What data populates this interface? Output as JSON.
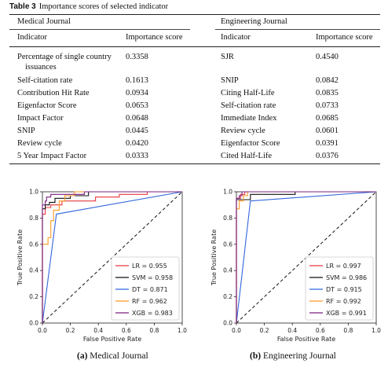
{
  "table": {
    "label": "Table 3",
    "caption": "Importance scores of selected indicator",
    "medical": {
      "journal": "Medical Journal",
      "col_indicator": "Indicator",
      "col_score": "Importance score",
      "rows": [
        {
          "indicator": "Percentage of single country",
          "indicator2": "issuances",
          "score": "0.3358"
        },
        {
          "indicator": "Self-citation rate",
          "score": "0.1613"
        },
        {
          "indicator": "Contribution Hit Rate",
          "score": "0.0934"
        },
        {
          "indicator": "Eigenfactor Score",
          "score": "0.0653"
        },
        {
          "indicator": "Impact Factor",
          "score": "0.0648"
        },
        {
          "indicator": "SNIP",
          "score": "0.0445"
        },
        {
          "indicator": "Review cycle",
          "score": "0.0420"
        },
        {
          "indicator": "5 Year Impact Factor",
          "score": "0.0333"
        }
      ]
    },
    "engineering": {
      "journal": "Engineering Journal",
      "col_indicator": "Indicator",
      "col_score": "Importance score",
      "rows": [
        {
          "indicator": "SJR",
          "score": "0.4540"
        },
        {
          "indicator": "SNIP",
          "score": "0.0842"
        },
        {
          "indicator": "Citing Half-Life",
          "score": "0.0835"
        },
        {
          "indicator": "Self-citation rate",
          "score": "0.0733"
        },
        {
          "indicator": "Immediate Index",
          "score": "0.0685"
        },
        {
          "indicator": "Review cycle",
          "score": "0.0601"
        },
        {
          "indicator": "Eigenfactor Score",
          "score": "0.0391"
        },
        {
          "indicator": "Cited Half-Life",
          "score": "0.0376"
        }
      ]
    }
  },
  "chart_data": [
    {
      "type": "line",
      "subtitle_tag": "(a)",
      "subtitle": "Medical Journal",
      "xlabel": "False Positive Rate",
      "ylabel": "True Positive Rate",
      "xlim": [
        0,
        1
      ],
      "ylim": [
        0,
        1
      ],
      "ticks": [
        "0.0",
        "0.2",
        "0.4",
        "0.6",
        "0.8",
        "1.0"
      ],
      "legend_position": "lower-right",
      "diagonal": true,
      "series": [
        {
          "name": "LR = 0.955",
          "color": "#e8383d",
          "points": [
            [
              0,
              0
            ],
            [
              0,
              0.83
            ],
            [
              0.02,
              0.83
            ],
            [
              0.02,
              0.88
            ],
            [
              0.06,
              0.88
            ],
            [
              0.06,
              0.9
            ],
            [
              0.14,
              0.9
            ],
            [
              0.14,
              0.93
            ],
            [
              0.38,
              0.93
            ],
            [
              0.38,
              0.96
            ],
            [
              0.55,
              0.96
            ],
            [
              0.55,
              0.98
            ],
            [
              0.75,
              0.98
            ],
            [
              0.75,
              1
            ],
            [
              1,
              1
            ]
          ]
        },
        {
          "name": "SVM = 0.958",
          "color": "#111111",
          "points": [
            [
              0,
              0
            ],
            [
              0,
              0.87
            ],
            [
              0.02,
              0.87
            ],
            [
              0.02,
              0.9
            ],
            [
              0.05,
              0.9
            ],
            [
              0.05,
              0.92
            ],
            [
              0.09,
              0.92
            ],
            [
              0.09,
              0.95
            ],
            [
              0.2,
              0.95
            ],
            [
              0.2,
              0.97
            ],
            [
              0.33,
              0.97
            ],
            [
              0.33,
              1
            ],
            [
              1,
              1
            ]
          ]
        },
        {
          "name": "DT = 0.871",
          "color": "#3366dd",
          "points": [
            [
              0,
              0
            ],
            [
              0.1,
              0.83
            ],
            [
              1,
              1
            ]
          ]
        },
        {
          "name": "RF = 0.962",
          "color": "#ff9922",
          "points": [
            [
              0,
              0
            ],
            [
              0,
              0.6
            ],
            [
              0.04,
              0.6
            ],
            [
              0.04,
              0.65
            ],
            [
              0.06,
              0.65
            ],
            [
              0.06,
              0.78
            ],
            [
              0.08,
              0.78
            ],
            [
              0.08,
              0.86
            ],
            [
              0.12,
              0.86
            ],
            [
              0.12,
              0.93
            ],
            [
              0.16,
              0.93
            ],
            [
              0.16,
              0.97
            ],
            [
              0.23,
              0.97
            ],
            [
              0.23,
              1
            ],
            [
              1,
              1
            ]
          ]
        },
        {
          "name": "XGB = 0.983",
          "color": "#7b1f7f",
          "points": [
            [
              0,
              0
            ],
            [
              0,
              0.9
            ],
            [
              0.02,
              0.9
            ],
            [
              0.02,
              0.93
            ],
            [
              0.03,
              0.93
            ],
            [
              0.03,
              0.96
            ],
            [
              0.06,
              0.96
            ],
            [
              0.06,
              0.98
            ],
            [
              0.3,
              0.98
            ],
            [
              0.3,
              1
            ],
            [
              1,
              1
            ]
          ]
        }
      ]
    },
    {
      "type": "line",
      "subtitle_tag": "(b)",
      "subtitle": "Engineering Journal",
      "xlabel": "False Positive Rate",
      "ylabel": "True Positive Rate",
      "xlim": [
        0,
        1
      ],
      "ylim": [
        0,
        1
      ],
      "ticks": [
        "0.0",
        "0.2",
        "0.4",
        "0.6",
        "0.8",
        "1.0"
      ],
      "legend_position": "lower-right",
      "diagonal": true,
      "series": [
        {
          "name": "LR = 0.997",
          "color": "#e8383d",
          "points": [
            [
              0,
              0
            ],
            [
              0,
              0.95
            ],
            [
              0.03,
              0.95
            ],
            [
              0.03,
              0.98
            ],
            [
              0.06,
              0.98
            ],
            [
              0.06,
              1
            ],
            [
              1,
              1
            ]
          ]
        },
        {
          "name": "SVM = 0.986",
          "color": "#111111",
          "points": [
            [
              0,
              0
            ],
            [
              0,
              0.94
            ],
            [
              0.1,
              0.94
            ],
            [
              0.1,
              0.98
            ],
            [
              0.42,
              0.98
            ],
            [
              0.42,
              1
            ],
            [
              1,
              1
            ]
          ]
        },
        {
          "name": "DT = 0.915",
          "color": "#3366dd",
          "points": [
            [
              0,
              0
            ],
            [
              0.1,
              0.93
            ],
            [
              1,
              1
            ]
          ]
        },
        {
          "name": "RF = 0.992",
          "color": "#ff9922",
          "points": [
            [
              0,
              0
            ],
            [
              0,
              0.87
            ],
            [
              0.02,
              0.87
            ],
            [
              0.02,
              0.93
            ],
            [
              0.05,
              0.93
            ],
            [
              0.05,
              0.97
            ],
            [
              0.08,
              0.97
            ],
            [
              0.08,
              1
            ],
            [
              1,
              1
            ]
          ]
        },
        {
          "name": "XGB = 0.991",
          "color": "#7b1f7f",
          "points": [
            [
              0,
              0
            ],
            [
              0,
              0.95
            ],
            [
              0.02,
              0.95
            ],
            [
              0.02,
              0.97
            ],
            [
              0.04,
              0.97
            ],
            [
              0.04,
              1
            ],
            [
              1,
              1
            ]
          ]
        }
      ]
    }
  ]
}
